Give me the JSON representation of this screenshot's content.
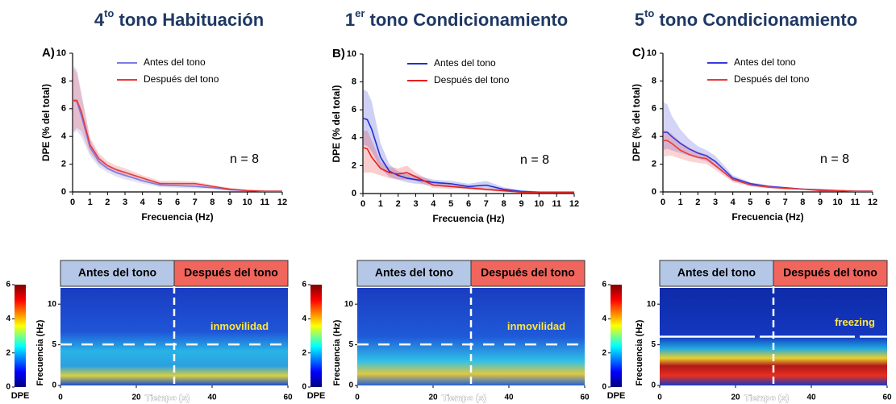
{
  "chart_data": [
    {
      "type": "line",
      "title": {
        "lead": "4",
        "sup": "to",
        "rest": " tono Habituación"
      },
      "label": "A)",
      "xlabel": "Frecuencia (Hz)",
      "ylabel": "DPE (% del total)",
      "annotation": "n = 8",
      "x": [
        0,
        0.25,
        0.5,
        1,
        1.5,
        2,
        2.5,
        3,
        4,
        5,
        6,
        7,
        8,
        9,
        10,
        11,
        12
      ],
      "xlim": [
        0,
        12
      ],
      "xticks": [
        0,
        1,
        2,
        3,
        4,
        5,
        6,
        7,
        8,
        9,
        10,
        11,
        12
      ],
      "ylim": [
        0,
        10
      ],
      "yticks": [
        0,
        2,
        4,
        6,
        8,
        10
      ],
      "series": [
        {
          "name": "Antes del tono",
          "color": "#7b7be0",
          "values": [
            6.6,
            6.5,
            5.5,
            3.2,
            2.2,
            1.7,
            1.4,
            1.2,
            0.8,
            0.5,
            0.45,
            0.4,
            0.3,
            0.15,
            0.1,
            0.05,
            0.05
          ],
          "upper": [
            9.2,
            8.8,
            7.2,
            3.8,
            2.6,
            2.0,
            1.7,
            1.5,
            1.0,
            0.7,
            0.6,
            0.55,
            0.4,
            0.2,
            0.15,
            0.1,
            0.1
          ],
          "lower": [
            4.2,
            4.4,
            4.0,
            2.6,
            1.8,
            1.4,
            1.1,
            0.9,
            0.6,
            0.35,
            0.3,
            0.25,
            0.2,
            0.1,
            0.05,
            0.02,
            0.02
          ]
        },
        {
          "name": "Después del tono",
          "color": "#e83a3a",
          "values": [
            6.6,
            6.6,
            5.8,
            3.4,
            2.4,
            1.9,
            1.6,
            1.4,
            1.0,
            0.6,
            0.6,
            0.6,
            0.4,
            0.2,
            0.1,
            0.05,
            0.05
          ],
          "upper": [
            9.0,
            8.6,
            7.0,
            3.9,
            2.8,
            2.2,
            1.9,
            1.7,
            1.2,
            0.8,
            0.8,
            0.75,
            0.5,
            0.3,
            0.15,
            0.1,
            0.1
          ],
          "lower": [
            4.3,
            4.6,
            4.4,
            2.8,
            2.0,
            1.6,
            1.3,
            1.1,
            0.8,
            0.45,
            0.4,
            0.4,
            0.3,
            0.12,
            0.05,
            0.02,
            0.02
          ]
        }
      ]
    },
    {
      "type": "line",
      "title": {
        "lead": "1",
        "sup": "er",
        "rest": " tono Condicionamiento"
      },
      "label": "B)",
      "xlabel": "Frecuencia (Hz)",
      "ylabel": "DPE (% del total)",
      "annotation": "n = 8",
      "x": [
        0,
        0.25,
        0.5,
        1,
        1.5,
        2,
        2.5,
        3,
        4,
        5,
        6,
        7,
        8,
        9,
        10,
        11,
        12
      ],
      "xlim": [
        0,
        12
      ],
      "xticks": [
        0,
        1,
        2,
        3,
        4,
        5,
        6,
        7,
        8,
        9,
        10,
        11,
        12
      ],
      "ylim": [
        0,
        10
      ],
      "yticks": [
        0,
        2,
        4,
        6,
        8,
        10
      ],
      "series": [
        {
          "name": "Antes del tono",
          "color": "#1f2fd0",
          "values": [
            5.4,
            5.3,
            4.6,
            2.6,
            1.6,
            1.3,
            1.1,
            1.0,
            0.8,
            0.7,
            0.5,
            0.6,
            0.3,
            0.15,
            0.1,
            0.1,
            0.1
          ],
          "upper": [
            7.5,
            7.3,
            6.6,
            3.6,
            2.1,
            1.6,
            1.4,
            1.3,
            1.0,
            0.9,
            0.7,
            0.9,
            0.45,
            0.25,
            0.15,
            0.15,
            0.15
          ],
          "lower": [
            3.5,
            3.4,
            3.0,
            1.8,
            1.2,
            1.0,
            0.8,
            0.7,
            0.6,
            0.5,
            0.35,
            0.4,
            0.2,
            0.08,
            0.05,
            0.05,
            0.05
          ]
        },
        {
          "name": "Después del tono",
          "color": "#e81e1e",
          "values": [
            3.3,
            3.2,
            2.6,
            1.8,
            1.5,
            1.4,
            1.5,
            1.2,
            0.6,
            0.5,
            0.4,
            0.3,
            0.2,
            0.1,
            0.1,
            0.1,
            0.1
          ],
          "upper": [
            4.5,
            4.5,
            3.8,
            2.3,
            1.9,
            1.8,
            2.0,
            1.5,
            0.8,
            0.6,
            0.5,
            0.4,
            0.3,
            0.15,
            0.15,
            0.15,
            0.15
          ],
          "lower": [
            1.5,
            1.5,
            1.5,
            1.3,
            1.1,
            1.0,
            1.0,
            0.9,
            0.4,
            0.35,
            0.3,
            0.2,
            0.1,
            0.05,
            0.05,
            0.05,
            0.05
          ]
        }
      ]
    },
    {
      "type": "line",
      "title": {
        "lead": "5",
        "sup": "to",
        "rest": " tono Condicionamiento"
      },
      "label": "C)",
      "xlabel": "Frecuencia (Hz)",
      "ylabel": "DPE (% del total)",
      "annotation": "n = 8",
      "x": [
        0,
        0.25,
        0.5,
        1,
        1.5,
        2,
        2.5,
        3,
        4,
        5,
        6,
        7,
        8,
        9,
        10,
        11,
        12
      ],
      "xlim": [
        0,
        12
      ],
      "xticks": [
        0,
        1,
        2,
        3,
        4,
        5,
        6,
        7,
        8,
        9,
        10,
        11,
        12
      ],
      "ylim": [
        0,
        10
      ],
      "yticks": [
        0,
        2,
        4,
        6,
        8,
        10
      ],
      "series": [
        {
          "name": "Antes del tono",
          "color": "#3a3ad8",
          "values": [
            4.3,
            4.3,
            4.0,
            3.5,
            3.1,
            2.8,
            2.6,
            2.2,
            1.0,
            0.6,
            0.4,
            0.3,
            0.2,
            0.15,
            0.1,
            0.05,
            0.05
          ],
          "upper": [
            6.5,
            6.3,
            5.5,
            4.5,
            3.8,
            3.3,
            3.0,
            2.6,
            1.2,
            0.7,
            0.5,
            0.35,
            0.25,
            0.2,
            0.15,
            0.1,
            0.1
          ],
          "lower": [
            3.0,
            3.1,
            3.0,
            2.8,
            2.6,
            2.4,
            2.2,
            1.8,
            0.8,
            0.5,
            0.3,
            0.25,
            0.15,
            0.1,
            0.05,
            0.02,
            0.02
          ]
        },
        {
          "name": "Después  del tono",
          "color": "#e83a3a",
          "values": [
            3.7,
            3.7,
            3.5,
            3.0,
            2.7,
            2.5,
            2.4,
            1.9,
            0.9,
            0.5,
            0.35,
            0.25,
            0.2,
            0.1,
            0.1,
            0.05,
            0.05
          ],
          "upper": [
            4.5,
            4.4,
            4.2,
            3.6,
            3.2,
            2.9,
            2.7,
            2.2,
            1.1,
            0.6,
            0.45,
            0.3,
            0.25,
            0.15,
            0.15,
            0.1,
            0.1
          ],
          "lower": [
            2.5,
            2.6,
            2.6,
            2.4,
            2.2,
            2.1,
            2.0,
            1.6,
            0.7,
            0.4,
            0.25,
            0.2,
            0.15,
            0.05,
            0.05,
            0.02,
            0.02
          ]
        }
      ]
    },
    {
      "type": "heatmap",
      "headers": [
        "Antes del tono",
        "Después del tono"
      ],
      "annotation": "inmovilidad",
      "xlabel": "Tiempo (s)",
      "ylabel": "Frecuencia (Hz)",
      "xlim": [
        0,
        60
      ],
      "xticks": [
        0,
        20,
        40,
        60
      ],
      "ylim": [
        0,
        12
      ],
      "yticks": [
        0,
        5,
        10
      ],
      "clim": [
        0,
        6
      ],
      "cticks": [
        0,
        2,
        4,
        6
      ],
      "clabel": "DPE"
    },
    {
      "type": "heatmap",
      "headers": [
        "Antes del tono",
        "Después del tono"
      ],
      "annotation": "inmovilidad",
      "xlabel": "Tiempo (s)",
      "ylabel": "Frecuencia (Hz)",
      "xlim": [
        0,
        60
      ],
      "xticks": [
        0,
        20,
        40,
        60
      ],
      "ylim": [
        0,
        12
      ],
      "yticks": [
        0,
        5,
        10
      ],
      "clim": [
        0,
        6
      ],
      "cticks": [
        0,
        2,
        4,
        6
      ],
      "clabel": "DPE"
    },
    {
      "type": "heatmap",
      "headers": [
        "Antes del tono",
        "Después del tono"
      ],
      "annotation": "freezing",
      "xlabel": "Tiempo (s)",
      "ylabel": "Frecuencia (Hz)",
      "xlim": [
        0,
        60
      ],
      "xticks": [
        0,
        20,
        40,
        60
      ],
      "ylim": [
        0,
        12
      ],
      "yticks": [
        0,
        5,
        10
      ],
      "clim": [
        0,
        6
      ],
      "cticks": [
        0,
        2,
        4,
        6
      ],
      "clabel": "DPE"
    }
  ]
}
